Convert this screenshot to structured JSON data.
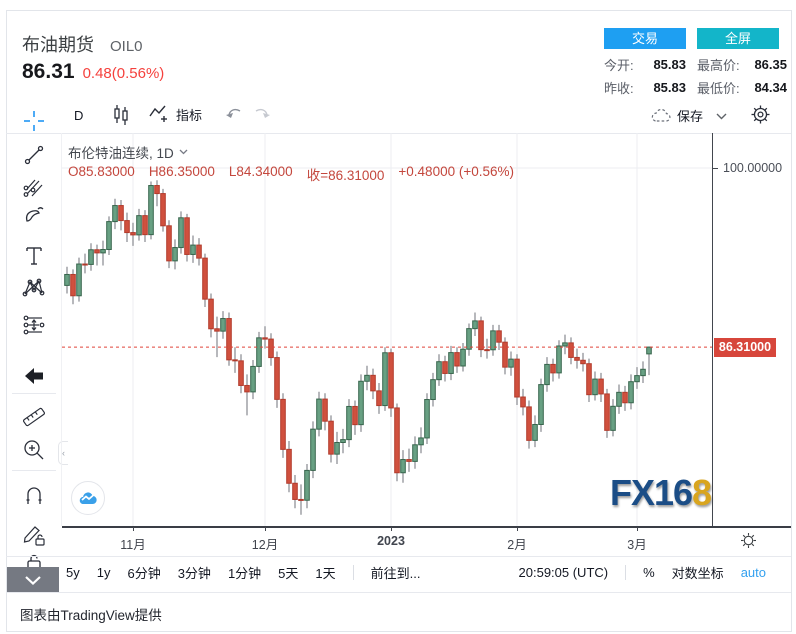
{
  "header": {
    "title": "布油期货",
    "symbol": "OIL0",
    "price": "86.31",
    "change": "0.48(0.56%)",
    "buttons": {
      "trade": "交易",
      "fullscreen": "全屏"
    },
    "stats": [
      {
        "label": "今开:",
        "value": "85.83"
      },
      {
        "label": "最高价:",
        "value": "86.35"
      },
      {
        "label": "昨收:",
        "value": "85.83"
      },
      {
        "label": "最低价:",
        "value": "84.34"
      }
    ]
  },
  "toolbar": {
    "interval": "D",
    "indicators_label": "指标",
    "save_label": "保存",
    "icons": [
      "candlestick-style-icon",
      "indicator-icon",
      "undo-icon",
      "redo-icon",
      "cloud-icon",
      "chevron-down-icon",
      "gear-icon"
    ]
  },
  "sidebar": {
    "tools": [
      "crosshair",
      "trend-line",
      "gann-fib",
      "brush",
      "text",
      "xabcd-pattern",
      "position-tool",
      "arrow-left",
      "ruler",
      "zoom-in",
      "magnet",
      "lock-drawings",
      "lock",
      "scroll-down"
    ]
  },
  "legend": {
    "series_title": "布伦特油连续, 1D",
    "o": "O85.83000",
    "h": "H86.35000",
    "l": "L84.34000",
    "close": "收=86.31000",
    "change": "+0.48000 (+0.56%)"
  },
  "price_axis": {
    "top_label": "100.00000",
    "last_price_label": "86.31000"
  },
  "bottom_toolbar": {
    "ranges": [
      "5y",
      "1y",
      "6分钟",
      "3分钟",
      "1分钟",
      "5天",
      "1天"
    ],
    "goto": "前往到...",
    "clock": "20:59:05 (UTC)",
    "percent": "%",
    "log_label": "对数坐标",
    "auto_label": "auto"
  },
  "watermark": {
    "text_main": "FX16",
    "text_last": "8"
  },
  "credit": "图表由TradingView提供",
  "colors": {
    "accent_blue": "#1e9ff2",
    "accent_teal": "#13b5c9",
    "change_red": "#f5413d",
    "legend_red": "#c4473d",
    "up_fill": "#68a083",
    "up_stroke": "#37654c",
    "down_fill": "#d0503e",
    "down_stroke": "#b23b2c",
    "wick": "#6f7278",
    "grid": "#eceef2",
    "price_line": "#e0433a",
    "price_tag_bg": "#d7463b",
    "axis_line": "#42464e"
  },
  "chart_data": {
    "type": "candlestick",
    "symbol": "布伦特油连续",
    "interval": "1D",
    "last": {
      "open": 85.83,
      "high": 86.35,
      "low": 84.34,
      "close": 86.31,
      "change": 0.48,
      "change_pct": "0.56%"
    },
    "y_axis": {
      "scale": "log",
      "visible_tick": 100.0,
      "price_line": 86.31
    },
    "x_labels": [
      {
        "label": "11月",
        "index": 11,
        "bold": false
      },
      {
        "label": "12月",
        "index": 33,
        "bold": false
      },
      {
        "label": "2023",
        "index": 54,
        "bold": true
      },
      {
        "label": "2月",
        "index": 75,
        "bold": false
      },
      {
        "label": "3月",
        "index": 95,
        "bold": false
      }
    ],
    "candles": [
      [
        90.8,
        92.2,
        90.2,
        91.62
      ],
      [
        91.62,
        92.0,
        89.4,
        90.03
      ],
      [
        90.03,
        92.9,
        89.6,
        92.41
      ],
      [
        92.41,
        93.2,
        91.7,
        92.38
      ],
      [
        92.38,
        94.0,
        91.9,
        93.5
      ],
      [
        93.5,
        93.9,
        92.3,
        93.26
      ],
      [
        93.26,
        94.2,
        92.3,
        93.52
      ],
      [
        93.52,
        96.1,
        93.1,
        95.69
      ],
      [
        95.69,
        97.5,
        95.1,
        96.96
      ],
      [
        96.96,
        97.4,
        95.0,
        95.77
      ],
      [
        95.77,
        96.4,
        94.1,
        94.83
      ],
      [
        94.83,
        95.6,
        93.8,
        94.65
      ],
      [
        94.65,
        96.7,
        94.2,
        96.16
      ],
      [
        96.16,
        96.6,
        94.1,
        94.67
      ],
      [
        94.67,
        98.9,
        94.3,
        98.57
      ],
      [
        98.57,
        99.0,
        96.9,
        97.92
      ],
      [
        97.92,
        98.3,
        94.9,
        95.36
      ],
      [
        95.36,
        95.8,
        92.1,
        92.65
      ],
      [
        92.65,
        94.3,
        92.0,
        93.67
      ],
      [
        93.67,
        96.5,
        93.2,
        95.99
      ],
      [
        95.99,
        96.3,
        92.6,
        93.14
      ],
      [
        93.14,
        94.6,
        92.5,
        93.86
      ],
      [
        93.86,
        94.4,
        92.3,
        92.86
      ],
      [
        92.86,
        93.2,
        89.2,
        89.78
      ],
      [
        89.78,
        90.2,
        87.0,
        87.62
      ],
      [
        87.62,
        88.5,
        85.6,
        87.45
      ],
      [
        87.45,
        88.9,
        86.9,
        88.36
      ],
      [
        88.36,
        88.8,
        85.0,
        85.41
      ],
      [
        85.41,
        86.3,
        84.5,
        85.34
      ],
      [
        85.34,
        85.8,
        83.1,
        83.63
      ],
      [
        83.63,
        84.4,
        81.6,
        83.19
      ],
      [
        83.19,
        85.4,
        82.7,
        84.95
      ],
      [
        84.95,
        87.4,
        84.5,
        86.97
      ],
      [
        86.97,
        87.8,
        86.2,
        86.88
      ],
      [
        86.88,
        87.3,
        85.0,
        85.57
      ],
      [
        85.57,
        86.0,
        82.1,
        82.68
      ],
      [
        82.68,
        83.1,
        78.8,
        79.35
      ],
      [
        79.35,
        79.9,
        76.6,
        77.17
      ],
      [
        77.17,
        77.7,
        75.6,
        76.15
      ],
      [
        76.15,
        77.1,
        75.2,
        76.1
      ],
      [
        76.1,
        78.4,
        75.6,
        77.99
      ],
      [
        77.99,
        81.2,
        77.5,
        80.68
      ],
      [
        80.68,
        83.2,
        80.2,
        82.7
      ],
      [
        82.7,
        83.1,
        80.6,
        81.21
      ],
      [
        81.21,
        81.6,
        78.5,
        79.04
      ],
      [
        79.04,
        80.5,
        78.4,
        79.8
      ],
      [
        79.8,
        80.7,
        79.1,
        79.99
      ],
      [
        79.99,
        82.7,
        79.5,
        82.2
      ],
      [
        82.2,
        82.6,
        80.3,
        80.98
      ],
      [
        80.98,
        84.4,
        80.5,
        83.92
      ],
      [
        83.92,
        85.0,
        83.3,
        84.33
      ],
      [
        84.33,
        84.8,
        82.7,
        83.26
      ],
      [
        83.26,
        83.8,
        81.7,
        82.26
      ],
      [
        82.26,
        86.3,
        81.9,
        85.91
      ],
      [
        85.91,
        86.2,
        81.5,
        82.1
      ],
      [
        82.1,
        82.4,
        77.3,
        77.84
      ],
      [
        77.84,
        79.3,
        77.2,
        78.69
      ],
      [
        78.69,
        79.4,
        77.9,
        78.57
      ],
      [
        78.57,
        80.2,
        78.1,
        79.65
      ],
      [
        79.65,
        80.8,
        79.1,
        80.1
      ],
      [
        80.1,
        83.1,
        79.7,
        82.67
      ],
      [
        82.67,
        84.5,
        82.2,
        84.03
      ],
      [
        84.03,
        85.8,
        83.6,
        85.28
      ],
      [
        85.28,
        85.7,
        83.9,
        84.46
      ],
      [
        84.46,
        86.4,
        84.0,
        85.92
      ],
      [
        85.92,
        86.3,
        84.5,
        84.98
      ],
      [
        84.98,
        86.6,
        84.6,
        86.16
      ],
      [
        86.16,
        88.0,
        85.7,
        87.63
      ],
      [
        87.63,
        88.8,
        87.1,
        88.19
      ],
      [
        88.19,
        88.5,
        85.6,
        86.13
      ],
      [
        86.13,
        86.9,
        85.5,
        86.12
      ],
      [
        86.12,
        87.9,
        85.7,
        87.47
      ],
      [
        87.47,
        87.9,
        86.1,
        86.66
      ],
      [
        86.66,
        87.0,
        84.4,
        84.9
      ],
      [
        84.9,
        86.0,
        84.3,
        85.46
      ],
      [
        85.46,
        85.8,
        82.3,
        82.84
      ],
      [
        82.84,
        83.4,
        81.6,
        82.17
      ],
      [
        82.17,
        82.6,
        79.4,
        79.94
      ],
      [
        79.94,
        81.6,
        79.5,
        80.99
      ],
      [
        80.99,
        84.1,
        80.5,
        83.69
      ],
      [
        83.69,
        85.6,
        83.2,
        85.09
      ],
      [
        85.09,
        85.5,
        83.9,
        84.5
      ],
      [
        84.5,
        86.8,
        84.1,
        86.39
      ],
      [
        86.39,
        87.2,
        85.8,
        86.61
      ],
      [
        86.61,
        87.0,
        85.1,
        85.58
      ],
      [
        85.58,
        86.2,
        84.8,
        85.38
      ],
      [
        85.38,
        85.9,
        84.6,
        85.14
      ],
      [
        85.14,
        85.5,
        82.5,
        83.0
      ],
      [
        83.0,
        84.6,
        82.6,
        84.07
      ],
      [
        84.07,
        84.5,
        82.5,
        83.05
      ],
      [
        83.05,
        83.4,
        80.1,
        80.6
      ],
      [
        80.6,
        82.7,
        80.2,
        82.21
      ],
      [
        82.21,
        83.7,
        81.7,
        83.16
      ],
      [
        83.16,
        83.6,
        81.9,
        82.45
      ],
      [
        82.45,
        84.4,
        82.0,
        83.89
      ],
      [
        83.89,
        84.9,
        83.4,
        84.31
      ],
      [
        84.31,
        85.3,
        83.8,
        84.75
      ],
      [
        85.83,
        86.35,
        84.34,
        86.31
      ]
    ]
  }
}
